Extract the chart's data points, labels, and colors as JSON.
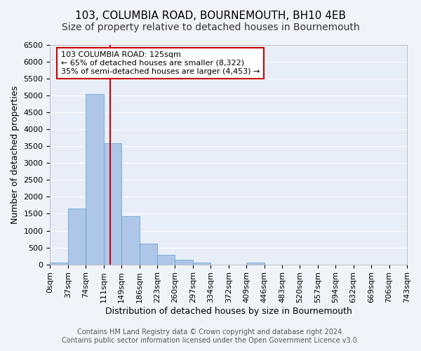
{
  "title": "103, COLUMBIA ROAD, BOURNEMOUTH, BH10 4EB",
  "subtitle": "Size of property relative to detached houses in Bournemouth",
  "xlabel": "Distribution of detached houses by size in Bournemouth",
  "ylabel": "Number of detached properties",
  "bin_edges": [
    0,
    37,
    74,
    111,
    148,
    185,
    222,
    259,
    296,
    333,
    370,
    407,
    444,
    481,
    518,
    555,
    592,
    629,
    666,
    703,
    740
  ],
  "bin_labels": [
    "0sqm",
    "37sqm",
    "74sqm",
    "111sqm",
    "149sqm",
    "186sqm",
    "223sqm",
    "260sqm",
    "297sqm",
    "334sqm",
    "372sqm",
    "409sqm",
    "446sqm",
    "483sqm",
    "520sqm",
    "557sqm",
    "594sqm",
    "632sqm",
    "669sqm",
    "706sqm",
    "743sqm"
  ],
  "counts": [
    50,
    1650,
    5050,
    3580,
    1420,
    610,
    290,
    145,
    50,
    0,
    0,
    45,
    0,
    0,
    0,
    0,
    0,
    0,
    0,
    0
  ],
  "bar_color": "#aec6e8",
  "bar_edge_color": "#5a9fd4",
  "vline_x": 125,
  "vline_color": "#cc0000",
  "ylim": [
    0,
    6500
  ],
  "yticks": [
    0,
    500,
    1000,
    1500,
    2000,
    2500,
    3000,
    3500,
    4000,
    4500,
    5000,
    5500,
    6000,
    6500
  ],
  "annotation_title": "103 COLUMBIA ROAD: 125sqm",
  "annotation_line1": "← 65% of detached houses are smaller (8,322)",
  "annotation_line2": "35% of semi-detached houses are larger (4,453) →",
  "annotation_box_color": "#ffffff",
  "annotation_box_edge": "#cc0000",
  "footer_line1": "Contains HM Land Registry data © Crown copyright and database right 2024.",
  "footer_line2": "Contains public sector information licensed under the Open Government Licence v3.0.",
  "bg_color": "#f0f4fa",
  "plot_bg_color": "#e8eef8",
  "grid_color": "#ffffff",
  "title_fontsize": 11,
  "subtitle_fontsize": 10,
  "axis_label_fontsize": 9,
  "tick_fontsize": 8,
  "footer_fontsize": 7
}
